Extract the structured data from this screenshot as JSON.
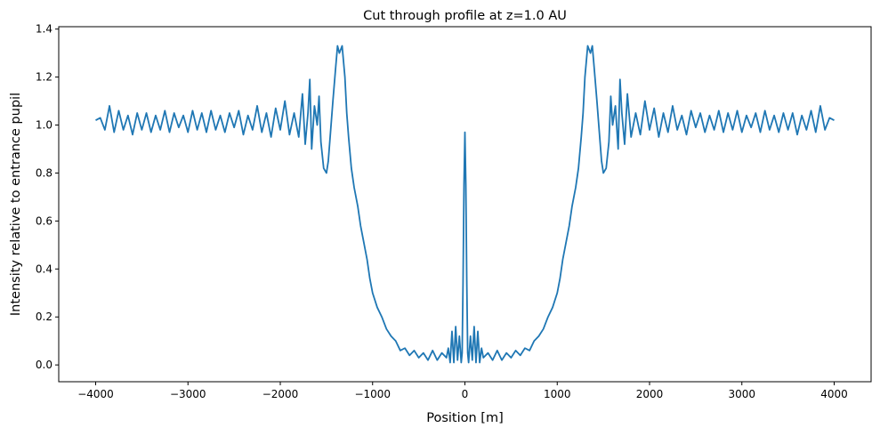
{
  "chart_data": {
    "type": "line",
    "title": "Cut through profile at z=1.0 AU",
    "xlabel": "Position [m]",
    "ylabel": "Intensity relative to entrance pupil",
    "xlim": [
      -4400,
      4400
    ],
    "ylim": [
      -0.07,
      1.41
    ],
    "x_ticks": [
      -4000,
      -3000,
      -2000,
      -1000,
      0,
      1000,
      2000,
      3000,
      4000
    ],
    "x_tick_labels": [
      "−4000",
      "−3000",
      "−2000",
      "−1000",
      "0",
      "1000",
      "2000",
      "3000",
      "4000"
    ],
    "y_ticks": [
      0.0,
      0.2,
      0.4,
      0.6,
      0.8,
      1.0,
      1.2,
      1.4
    ],
    "y_tick_labels": [
      "0.0",
      "0.2",
      "0.4",
      "0.6",
      "0.8",
      "1.0",
      "1.2",
      "1.4"
    ],
    "grid": false,
    "legend": "none",
    "series": [
      {
        "color": "#1f77b4",
        "symmetric_about_zero": true,
        "x": [
          0,
          10,
          20,
          30,
          40,
          60,
          80,
          100,
          120,
          140,
          160,
          180,
          200,
          250,
          300,
          350,
          400,
          450,
          500,
          550,
          600,
          650,
          700,
          750,
          800,
          850,
          900,
          950,
          1000,
          1030,
          1060,
          1100,
          1130,
          1160,
          1200,
          1230,
          1260,
          1280,
          1300,
          1330,
          1360,
          1380,
          1400,
          1430,
          1460,
          1480,
          1500,
          1530,
          1560,
          1580,
          1600,
          1630,
          1660,
          1680,
          1700,
          1730,
          1760,
          1800,
          1850,
          1900,
          1950,
          2000,
          2050,
          2100,
          2150,
          2200,
          2250,
          2300,
          2350,
          2400,
          2450,
          2500,
          2550,
          2600,
          2650,
          2700,
          2750,
          2800,
          2850,
          2900,
          2950,
          3000,
          3050,
          3100,
          3150,
          3200,
          3250,
          3300,
          3350,
          3400,
          3450,
          3500,
          3550,
          3600,
          3650,
          3700,
          3750,
          3800,
          3850,
          3900,
          3950,
          4000
        ],
        "y": [
          0.97,
          0.75,
          0.35,
          0.05,
          0.01,
          0.12,
          0.02,
          0.16,
          0.01,
          0.14,
          0.01,
          0.07,
          0.03,
          0.05,
          0.02,
          0.06,
          0.02,
          0.05,
          0.03,
          0.06,
          0.04,
          0.07,
          0.06,
          0.1,
          0.12,
          0.15,
          0.2,
          0.24,
          0.3,
          0.36,
          0.44,
          0.52,
          0.58,
          0.66,
          0.74,
          0.82,
          0.95,
          1.05,
          1.2,
          1.33,
          1.3,
          1.33,
          1.24,
          1.1,
          0.95,
          0.85,
          0.8,
          0.82,
          0.93,
          1.12,
          1.0,
          1.08,
          0.9,
          1.19,
          1.05,
          0.92,
          1.13,
          0.95,
          1.05,
          0.96,
          1.1,
          0.98,
          1.07,
          0.95,
          1.05,
          0.97,
          1.08,
          0.98,
          1.04,
          0.96,
          1.06,
          0.99,
          1.05,
          0.97,
          1.04,
          0.98,
          1.06,
          0.97,
          1.05,
          0.98,
          1.06,
          0.97,
          1.04,
          0.99,
          1.05,
          0.97,
          1.06,
          0.98,
          1.04,
          0.97,
          1.05,
          0.98,
          1.05,
          0.96,
          1.04,
          0.98,
          1.06,
          0.97,
          1.08,
          0.98,
          1.03,
          1.02
        ]
      }
    ]
  }
}
